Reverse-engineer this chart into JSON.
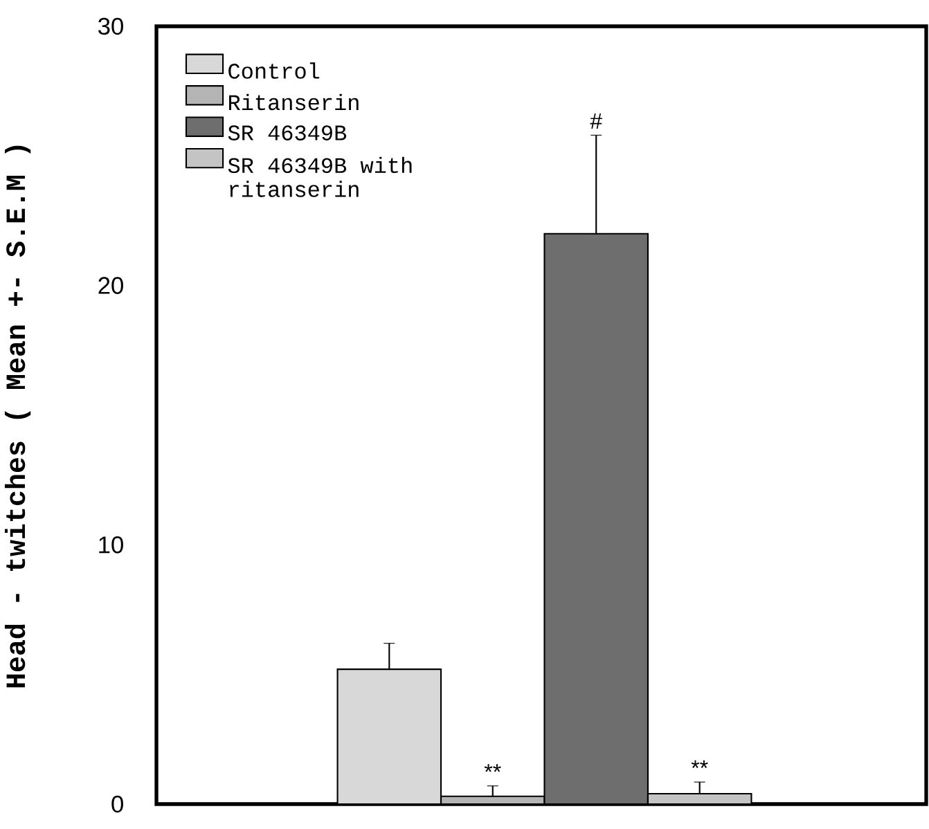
{
  "chart_data": {
    "type": "bar",
    "ylabel": "Head  -  twitches ( Mean +-  S.E.M )",
    "categories": [
      null
    ],
    "series": [
      {
        "name": "Control",
        "color": "#d8d8d8",
        "values": [
          5.2
        ],
        "errors": [
          [
            5.2,
            6.2
          ]
        ]
      },
      {
        "name": "Ritanserin",
        "color": "#b4b4b4",
        "values": [
          0.3
        ],
        "errors": [
          [
            0.3,
            0.7
          ]
        ]
      },
      {
        "name": "SR 46349B",
        "color": "#6e6e6e",
        "values": [
          22.0
        ],
        "errors": [
          [
            22.0,
            25.8
          ]
        ]
      },
      {
        "name": "SR 46349B with ritanserin",
        "color": "#c4c4c4",
        "values": [
          0.4
        ],
        "errors": [
          [
            0.4,
            0.85
          ]
        ]
      }
    ],
    "annotations": [
      "**",
      "#",
      "**"
    ],
    "ylim": [
      0,
      30
    ],
    "yticks": [
      0,
      10,
      20,
      30
    ],
    "tick_labels": "y",
    "grid": false,
    "legend": "top left"
  }
}
